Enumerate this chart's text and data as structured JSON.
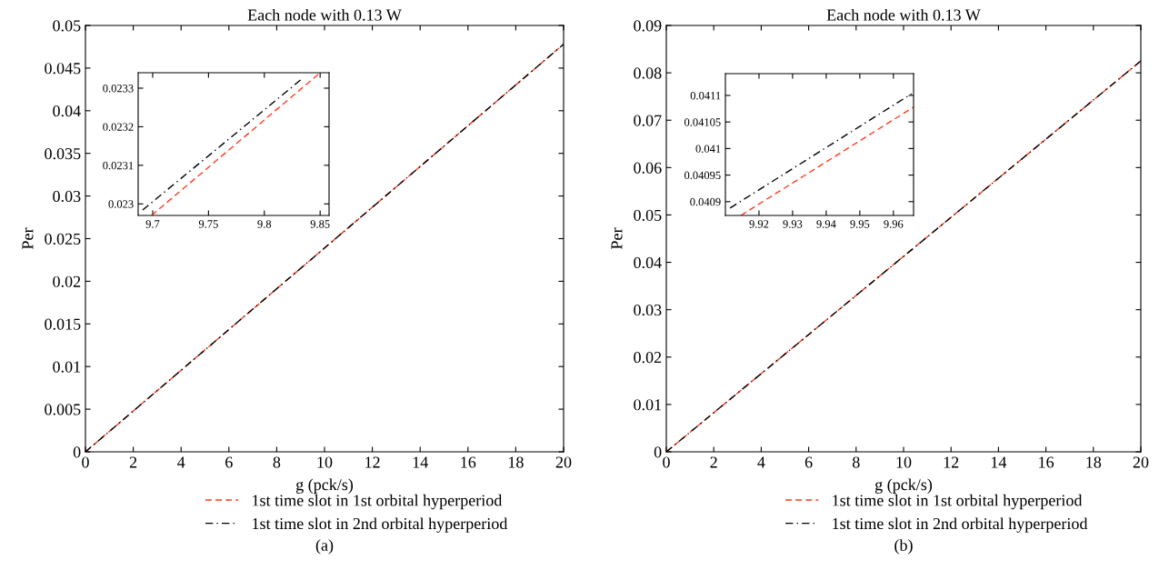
{
  "chart_data": [
    {
      "type": "line",
      "title": "Each node with 0.13 W",
      "xlabel": "g (pck/s)",
      "ylabel": "Per",
      "xlim": [
        0,
        20
      ],
      "xticks": [
        0,
        2,
        4,
        6,
        8,
        10,
        12,
        14,
        16,
        18,
        20
      ],
      "ylim": [
        0,
        0.05
      ],
      "yticks": [
        0,
        0.005,
        0.01,
        0.015,
        0.02,
        0.025,
        0.03,
        0.035,
        0.04,
        0.045,
        0.05
      ],
      "legend": "bottom",
      "annotations": [
        "(a)"
      ],
      "series": [
        {
          "name": "1st time slot in 1st orbital hyperperiod",
          "color": "#ff3b1f",
          "line_style": "dashed",
          "x": [
            0,
            20
          ],
          "values": [
            0,
            0.0478
          ]
        },
        {
          "name": "1st time slot in 2nd orbital hyperperiod",
          "color": "#000000",
          "line_style": "dashdot",
          "x": [
            0,
            20
          ],
          "values": [
            0,
            0.0478
          ]
        }
      ]
    },
    {
      "type": "line",
      "xlim": [
        9.687,
        9.858
      ],
      "xticks": [
        9.7,
        9.75,
        9.8,
        9.85
      ],
      "ylim": [
        0.02297,
        0.02334
      ],
      "yticks": [
        0.023,
        0.0231,
        0.0232,
        0.0233
      ],
      "series": [
        {
          "color": "#ff3b1f",
          "line_style": "dashed",
          "x": [
            9.699,
            9.85
          ],
          "values": [
            0.02297,
            0.02334
          ]
        },
        {
          "color": "#000000",
          "line_style": "dashdot",
          "x": [
            9.691,
            9.8345
          ],
          "values": [
            0.022984,
            0.023326
          ]
        }
      ]
    },
    {
      "type": "line",
      "title": "Each node with 0.13 W",
      "xlabel": "g (pck/s)",
      "ylabel": "Per",
      "xlim": [
        0,
        20
      ],
      "xticks": [
        0,
        2,
        4,
        6,
        8,
        10,
        12,
        14,
        16,
        18,
        20
      ],
      "ylim": [
        0,
        0.09
      ],
      "yticks": [
        0,
        0.01,
        0.02,
        0.03,
        0.04,
        0.05,
        0.06,
        0.07,
        0.08,
        0.09
      ],
      "legend": "bottom",
      "annotations": [
        "(b)"
      ],
      "series": [
        {
          "name": "1st time slot in 1st orbital hyperperiod",
          "color": "#ff3b1f",
          "line_style": "dashed",
          "x": [
            0,
            20
          ],
          "values": [
            0,
            0.0825
          ]
        },
        {
          "name": "1st time slot in 2nd orbital hyperperiod",
          "color": "#000000",
          "line_style": "dashdot",
          "x": [
            0,
            20
          ],
          "values": [
            0,
            0.0825
          ]
        }
      ]
    },
    {
      "type": "line",
      "xlim": [
        9.91,
        9.966
      ],
      "xticks": [
        9.92,
        9.93,
        9.94,
        9.95,
        9.96
      ],
      "ylim": [
        0.040874,
        0.041141
      ],
      "yticks": [
        0.0409,
        0.04095,
        0.041,
        0.04105,
        0.0411
      ],
      "series": [
        {
          "color": "#ff3b1f",
          "line_style": "dashed",
          "x": [
            9.9146,
            9.966
          ],
          "values": [
            0.040874,
            0.041078
          ]
        },
        {
          "color": "#000000",
          "line_style": "dashdot",
          "x": [
            9.9114,
            9.9654
          ],
          "values": [
            0.040888,
            0.041103
          ]
        }
      ]
    }
  ]
}
